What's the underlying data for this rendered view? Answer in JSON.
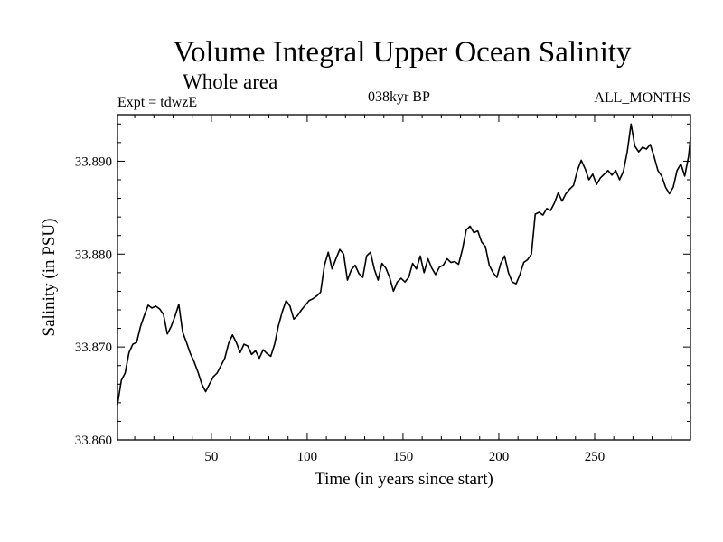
{
  "chart_data": {
    "type": "line",
    "title": "Volume Integral Upper Ocean Salinity",
    "subtitle": "Whole area",
    "annotations": {
      "left": "Expt = tdwzE",
      "center": "038kyr BP",
      "right": "ALL_MONTHS"
    },
    "xlabel": "Time (in years since start)",
    "ylabel": "Salinity (in PSU)",
    "xlim": [
      1,
      300
    ],
    "ylim": [
      33.86,
      33.895
    ],
    "x_ticks": [
      50,
      100,
      150,
      200,
      250
    ],
    "y_ticks": [
      "33.860",
      "33.870",
      "33.880",
      "33.890"
    ],
    "grid": false,
    "series": [
      {
        "x": [
          1,
          3,
          5,
          7,
          9,
          11,
          13,
          15,
          17,
          19,
          21,
          23,
          25,
          27,
          29,
          31,
          33,
          35,
          37,
          39,
          41,
          43,
          45,
          47,
          49,
          51,
          53,
          55,
          57,
          59,
          61,
          63,
          65,
          67,
          69,
          71,
          73,
          75,
          77,
          79,
          81,
          83,
          85,
          87,
          89,
          91,
          93,
          95,
          97,
          99,
          101,
          103,
          105,
          107,
          109,
          111,
          113,
          115,
          117,
          119,
          121,
          123,
          125,
          127,
          129,
          131,
          133,
          135,
          137,
          139,
          141,
          143,
          145,
          147,
          149,
          151,
          153,
          155,
          157,
          159,
          161,
          163,
          165,
          167,
          169,
          171,
          173,
          175,
          177,
          179,
          181,
          183,
          185,
          187,
          189,
          191,
          193,
          195,
          197,
          199,
          201,
          203,
          205,
          207,
          209,
          211,
          213,
          215,
          217,
          219,
          221,
          223,
          225,
          227,
          229,
          231,
          233,
          235,
          237,
          239,
          241,
          243,
          245,
          247,
          249,
          251,
          253,
          255,
          257,
          259,
          261,
          263,
          265,
          267,
          269,
          271,
          273,
          275,
          277,
          279,
          281,
          283,
          285,
          287,
          289,
          291,
          293,
          295,
          297,
          299,
          300
        ],
        "values": [
          33.8638,
          33.8664,
          33.8672,
          33.8694,
          33.8703,
          33.8705,
          33.8722,
          33.8734,
          33.8745,
          33.8742,
          33.8744,
          33.8741,
          33.8735,
          33.8714,
          33.8722,
          33.8733,
          33.8746,
          33.8716,
          33.8705,
          33.8693,
          33.8684,
          33.8673,
          33.866,
          33.8652,
          33.866,
          33.8668,
          33.8672,
          33.868,
          33.8688,
          33.8704,
          33.8713,
          33.8705,
          33.8694,
          33.8703,
          33.8701,
          33.8692,
          33.8696,
          33.8688,
          33.8697,
          33.8693,
          33.869,
          33.8703,
          33.8723,
          33.8738,
          33.875,
          33.8744,
          33.873,
          33.8734,
          33.874,
          33.8745,
          33.875,
          33.8752,
          33.8755,
          33.8759,
          33.8788,
          33.8802,
          33.8784,
          33.8795,
          33.8805,
          33.88,
          33.8772,
          33.8783,
          33.8788,
          33.8779,
          33.8775,
          33.8798,
          33.8802,
          33.8784,
          33.8772,
          33.879,
          33.8785,
          33.8775,
          33.876,
          33.877,
          33.8774,
          33.877,
          33.8775,
          33.879,
          33.8784,
          33.8798,
          33.878,
          33.8795,
          33.8785,
          33.8778,
          33.8786,
          33.8788,
          33.8795,
          33.8791,
          33.8792,
          33.8789,
          33.8805,
          33.8826,
          33.883,
          33.8823,
          33.8825,
          33.8813,
          33.8808,
          33.8788,
          33.878,
          33.8775,
          33.879,
          33.8798,
          33.878,
          33.877,
          33.8768,
          33.8778,
          33.8791,
          33.8794,
          33.88,
          33.8843,
          33.8845,
          33.8842,
          33.8849,
          33.8847,
          33.8855,
          33.8866,
          33.8857,
          33.8865,
          33.887,
          33.8874,
          33.889,
          33.8901,
          33.8892,
          33.888,
          33.8886,
          33.8875,
          33.8882,
          33.8886,
          33.889,
          33.8885,
          33.889,
          33.888,
          33.8889,
          33.891,
          33.894,
          33.8916,
          33.891,
          33.8915,
          33.8913,
          33.8918,
          33.8905,
          33.889,
          33.8884,
          33.8872,
          33.8865,
          33.8872,
          33.889,
          33.8897,
          33.8884,
          33.8905,
          33.8925
        ]
      }
    ]
  }
}
